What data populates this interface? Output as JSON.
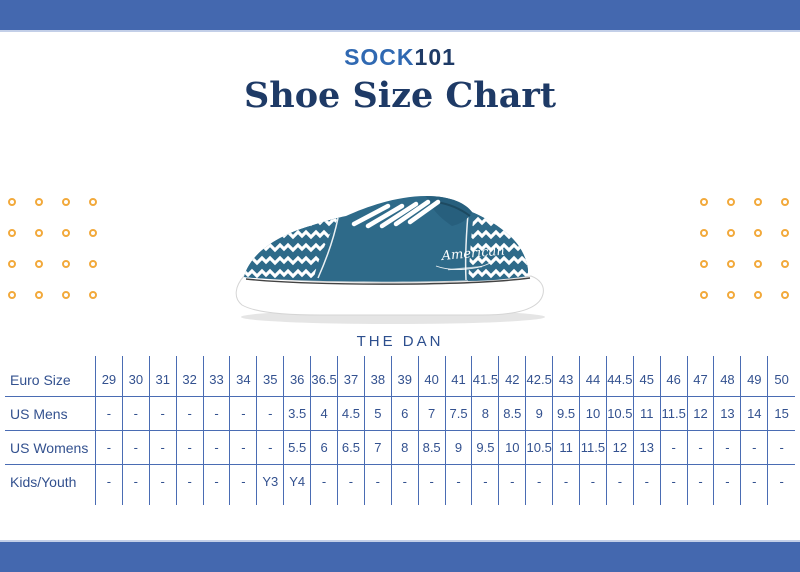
{
  "brand": {
    "name_part1": "SOCK",
    "name_part2": "101"
  },
  "title": "Shoe Size Chart",
  "product": {
    "name": "THE DAN",
    "signature": "American"
  },
  "size_table": {
    "rows": [
      {
        "label": "Euro Size",
        "values": [
          "29",
          "30",
          "31",
          "32",
          "33",
          "34",
          "35",
          "36",
          "36.5",
          "37",
          "38",
          "39",
          "40",
          "41",
          "41.5",
          "42",
          "42.5",
          "43",
          "44",
          "44.5",
          "45",
          "46",
          "47",
          "48",
          "49",
          "50"
        ]
      },
      {
        "label": "US Mens",
        "values": [
          "-",
          "-",
          "-",
          "-",
          "-",
          "-",
          "-",
          "3.5",
          "4",
          "4.5",
          "5",
          "6",
          "7",
          "7.5",
          "8",
          "8.5",
          "9",
          "9.5",
          "10",
          "10.5",
          "11",
          "11.5",
          "12",
          "13",
          "14",
          "15"
        ]
      },
      {
        "label": "US Womens",
        "values": [
          "-",
          "-",
          "-",
          "-",
          "-",
          "-",
          "-",
          "5.5",
          "6",
          "6.5",
          "7",
          "8",
          "8.5",
          "9",
          "9.5",
          "10",
          "10.5",
          "11",
          "11.5",
          "12",
          "13",
          "-",
          "-",
          "-",
          "-",
          "-"
        ]
      },
      {
        "label": "Kids/Youth",
        "values": [
          "-",
          "-",
          "-",
          "-",
          "-",
          "-",
          "Y3",
          "Y4",
          "-",
          "-",
          "-",
          "-",
          "-",
          "-",
          "-",
          "-",
          "-",
          "-",
          "-",
          "-",
          "-",
          "-",
          "-",
          "-",
          "-",
          "-"
        ]
      }
    ]
  },
  "decor": {
    "dot_rows": 4,
    "dot_cols": 4
  },
  "colors": {
    "bar_blue": "#4468af",
    "brand_blue": "#3069b2",
    "navy": "#1e3a66",
    "table_text": "#33518f",
    "table_line": "#4a6cb3",
    "accent_yellow": "#f2a93b",
    "shoe_teal": "#2e6a89",
    "label_blue": "#2d4f8e"
  }
}
